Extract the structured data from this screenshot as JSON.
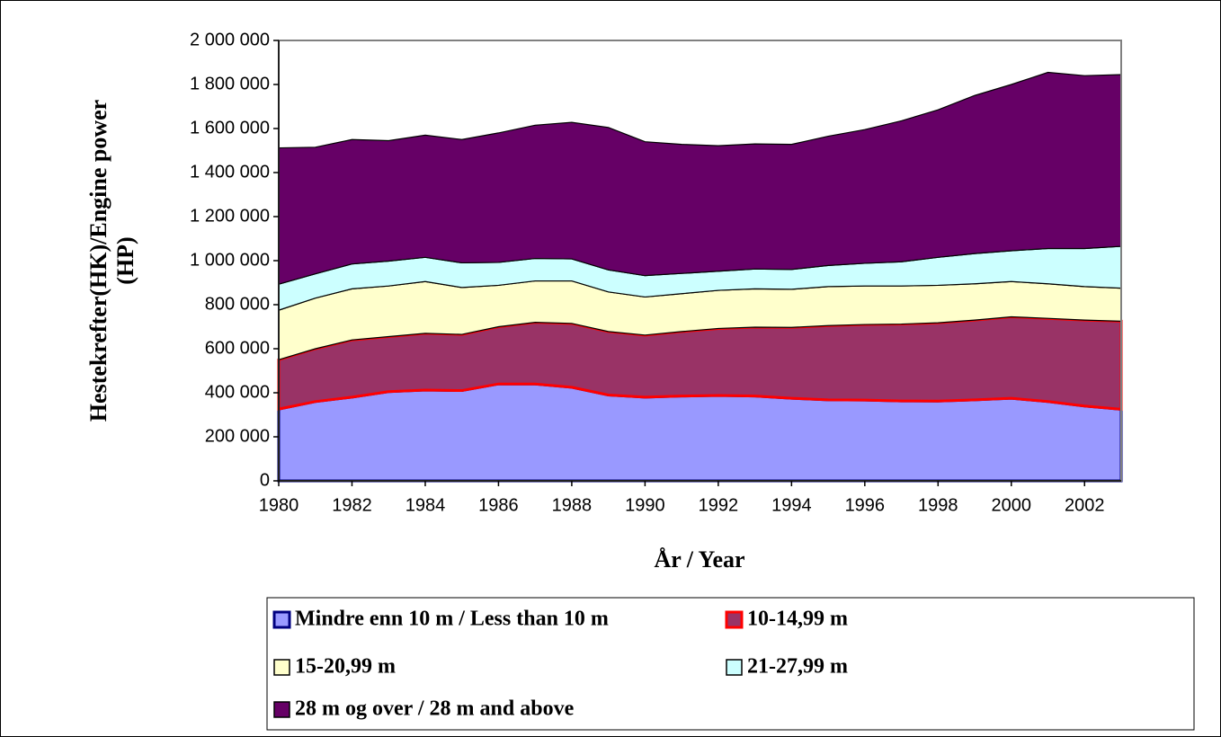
{
  "chart_data": {
    "type": "stacked_area",
    "x_label": "År / Year",
    "y_label": [
      "Hestekrefter(HK)/Engine power",
      "(HP)"
    ],
    "x": [
      1980,
      1981,
      1982,
      1983,
      1984,
      1985,
      1986,
      1987,
      1988,
      1989,
      1990,
      1991,
      1992,
      1993,
      1994,
      1995,
      1996,
      1997,
      1998,
      1999,
      2000,
      2001,
      2002,
      2003
    ],
    "xlim": [
      1980,
      2003
    ],
    "xticks": [
      1980,
      1982,
      1984,
      1986,
      1988,
      1990,
      1992,
      1994,
      1996,
      1998,
      2000,
      2002
    ],
    "ylim": [
      0,
      2000000
    ],
    "yticks": [
      0,
      {
        "value": 200000,
        "label": "200 000"
      },
      {
        "value": 400000,
        "label": "400 000"
      },
      {
        "value": 600000,
        "label": "600 000"
      },
      {
        "value": 800000,
        "label": "800 000"
      },
      {
        "value": 1000000,
        "label": "1 000 000"
      },
      {
        "value": 1200000,
        "label": "1 200 000"
      },
      {
        "value": 1400000,
        "label": "1 400 000"
      },
      {
        "value": 1600000,
        "label": "1 600 000"
      },
      {
        "value": 1800000,
        "label": "1 800 000"
      },
      {
        "value": 2000000,
        "label": "2 000 000"
      }
    ],
    "series": [
      {
        "name": "Mindre enn 10 m / Less than 10 m",
        "color": "#9999ff",
        "edge": "#000080",
        "values": [
          326000,
          360000,
          380000,
          405000,
          412000,
          410000,
          440000,
          440000,
          425000,
          390000,
          380000,
          385000,
          388000,
          385000,
          375000,
          368000,
          367000,
          363000,
          362000,
          368000,
          375000,
          360000,
          340000,
          325000
        ]
      },
      {
        "name": "10-14,99 m",
        "color": "#993366",
        "edge": "#ff0000",
        "values": [
          224000,
          240000,
          260000,
          250000,
          258000,
          255000,
          260000,
          280000,
          290000,
          288000,
          282000,
          293000,
          304000,
          313000,
          322000,
          337000,
          343000,
          349000,
          356000,
          362000,
          370000,
          378000,
          390000,
          400000
        ]
      },
      {
        "name": "15-20,99 m",
        "color": "#ffffcc",
        "edge": "#000000",
        "values": [
          225000,
          230000,
          232000,
          230000,
          235000,
          213000,
          188000,
          188000,
          193000,
          180000,
          173000,
          172000,
          173000,
          174000,
          173000,
          177000,
          175000,
          173000,
          170000,
          165000,
          160000,
          157000,
          152000,
          150000
        ]
      },
      {
        "name": "21-27,99 m",
        "color": "#ccffff",
        "edge": "#000000",
        "values": [
          118000,
          110000,
          113000,
          113000,
          110000,
          112000,
          104000,
          102000,
          100000,
          100000,
          97000,
          92000,
          87000,
          90000,
          90000,
          96000,
          103000,
          110000,
          127000,
          137000,
          140000,
          160000,
          173000,
          190000
        ]
      },
      {
        "name": "28 m og over / 28 m and above",
        "color": "#660066",
        "edge": "#000000",
        "values": [
          619000,
          575000,
          565000,
          547000,
          555000,
          560000,
          588000,
          605000,
          620000,
          647000,
          608000,
          586000,
          570000,
          568000,
          568000,
          587000,
          607000,
          640000,
          670000,
          718000,
          755000,
          800000,
          785000,
          780000
        ]
      }
    ]
  }
}
